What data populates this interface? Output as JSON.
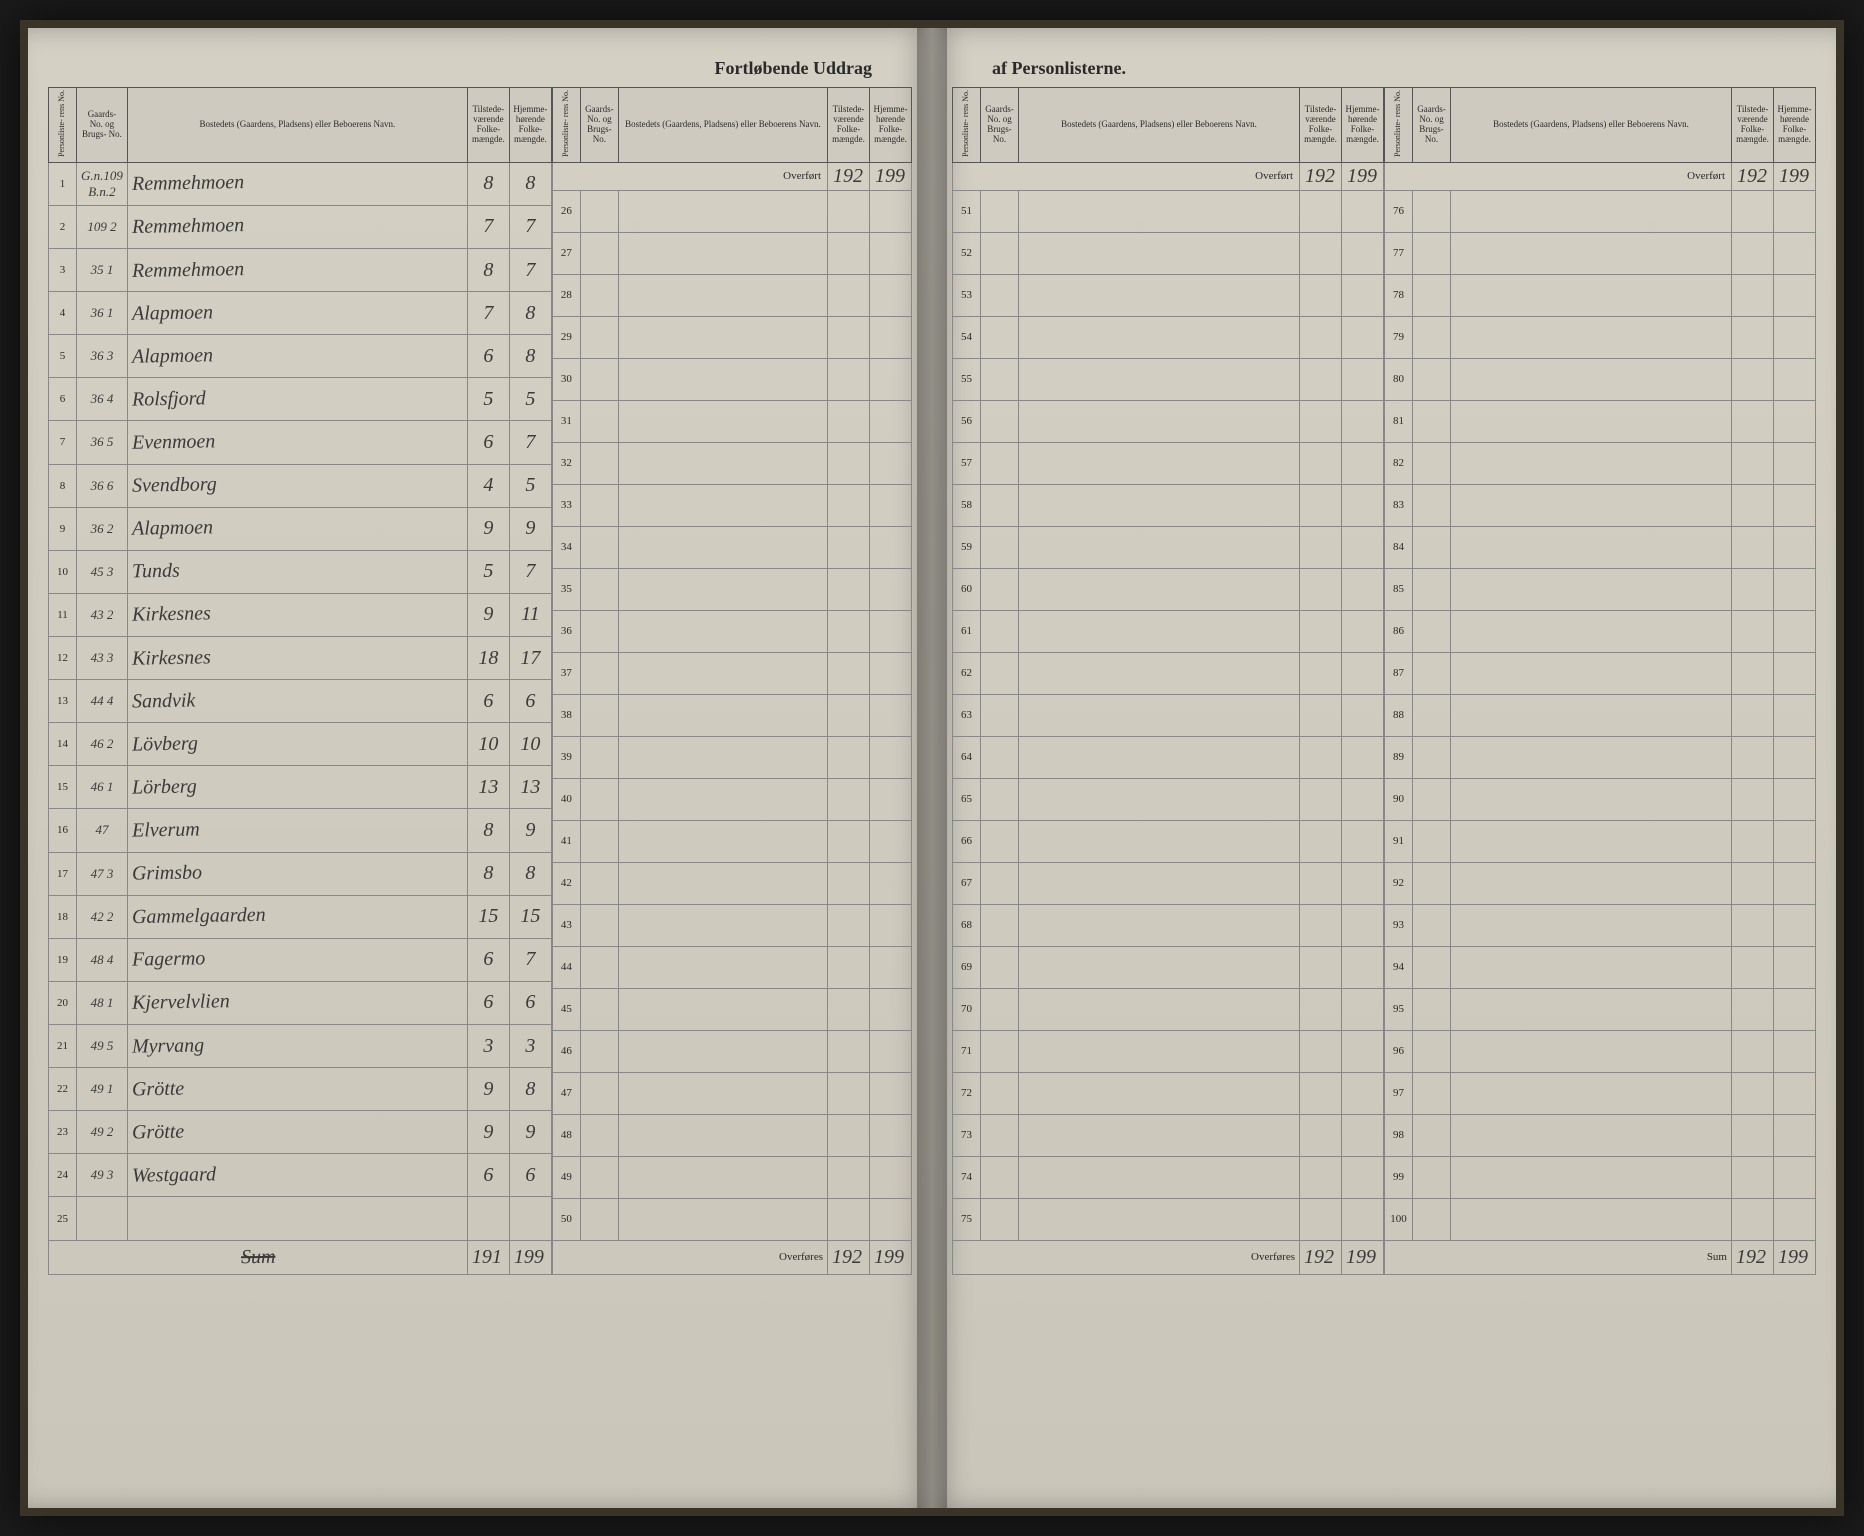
{
  "title_left": "Fortløbende Uddrag",
  "title_right": "af Personlisterne.",
  "headers": {
    "personliste": "Personliste-\nrens No.",
    "gaards": "Gaards-\nNo.\nog\nBrugs-\nNo.",
    "bosted": "Bostedets (Gaardens, Pladsens) eller\nBeboerens Navn.",
    "tilstede": "Tilstede-\nværende\nFolke-\nmængde.",
    "hjemme": "Hjemme-\nhørende\nFolke-\nmængde."
  },
  "overfort_label": "Overført",
  "overfores_label": "Overføres",
  "sum_label": "Sum",
  "overfort_values": [
    "192",
    "199"
  ],
  "entries": [
    {
      "n": "1",
      "g": "G.n.109\nB.n.2",
      "name": "Remmehmoen",
      "t": "8",
      "h": "8"
    },
    {
      "n": "2",
      "g": "109\n2",
      "name": "Remmehmoen",
      "t": "7",
      "h": "7"
    },
    {
      "n": "3",
      "g": "35\n1",
      "name": "Remmehmoen",
      "t": "8",
      "h": "7"
    },
    {
      "n": "4",
      "g": "36\n1",
      "name": "Alapmoen",
      "t": "7",
      "h": "8"
    },
    {
      "n": "5",
      "g": "36\n3",
      "name": "Alapmoen",
      "t": "6",
      "h": "8"
    },
    {
      "n": "6",
      "g": "36\n4",
      "name": "Rolsfjord",
      "t": "5",
      "h": "5"
    },
    {
      "n": "7",
      "g": "36\n5",
      "name": "Evenmoen",
      "t": "6",
      "h": "7"
    },
    {
      "n": "8",
      "g": "36\n6",
      "name": "Svendborg",
      "t": "4",
      "h": "5"
    },
    {
      "n": "9",
      "g": "36\n2",
      "name": "Alapmoen",
      "t": "9",
      "h": "9"
    },
    {
      "n": "10",
      "g": "45\n3",
      "name": "Tunds",
      "t": "5",
      "h": "7"
    },
    {
      "n": "11",
      "g": "43\n2",
      "name": "Kirkesnes",
      "t": "9",
      "h": "11"
    },
    {
      "n": "12",
      "g": "43\n3",
      "name": "Kirkesnes",
      "t": "18",
      "h": "17"
    },
    {
      "n": "13",
      "g": "44\n4",
      "name": "Sandvik",
      "t": "6",
      "h": "6"
    },
    {
      "n": "14",
      "g": "46\n2",
      "name": "Lövberg",
      "t": "10",
      "h": "10"
    },
    {
      "n": "15",
      "g": "46\n1",
      "name": "Lörberg",
      "t": "13",
      "h": "13"
    },
    {
      "n": "16",
      "g": "47\n",
      "name": "Elverum",
      "t": "8",
      "h": "9"
    },
    {
      "n": "17",
      "g": "47\n3",
      "name": "Grimsbo",
      "t": "8",
      "h": "8"
    },
    {
      "n": "18",
      "g": "42\n2",
      "name": "Gammelgaarden",
      "t": "15",
      "h": "15"
    },
    {
      "n": "19",
      "g": "48\n4",
      "name": "Fagermo",
      "t": "6",
      "h": "7"
    },
    {
      "n": "20",
      "g": "48\n1",
      "name": "Kjervelvlien",
      "t": "6",
      "h": "6"
    },
    {
      "n": "21",
      "g": "49\n5",
      "name": "Myrvang",
      "t": "3",
      "h": "3"
    },
    {
      "n": "22",
      "g": "49\n1",
      "name": "Grötte",
      "t": "9",
      "h": "8"
    },
    {
      "n": "23",
      "g": "49\n2",
      "name": "Grötte",
      "t": "9",
      "h": "9"
    },
    {
      "n": "24",
      "g": "49\n3",
      "name": "Westgaard",
      "t": "6",
      "h": "6"
    },
    {
      "n": "25",
      "g": "",
      "name": "",
      "t": "",
      "h": ""
    }
  ],
  "sum_values": [
    "191",
    "199"
  ],
  "block2_nums": [
    "26",
    "27",
    "28",
    "29",
    "30",
    "31",
    "32",
    "33",
    "34",
    "35",
    "36",
    "37",
    "38",
    "39",
    "40",
    "41",
    "42",
    "43",
    "44",
    "45",
    "46",
    "47",
    "48",
    "49",
    "50"
  ],
  "block3_nums": [
    "51",
    "52",
    "53",
    "54",
    "55",
    "56",
    "57",
    "58",
    "59",
    "60",
    "61",
    "62",
    "63",
    "64",
    "65",
    "66",
    "67",
    "68",
    "69",
    "70",
    "71",
    "72",
    "73",
    "74",
    "75"
  ],
  "block4_nums": [
    "76",
    "77",
    "78",
    "79",
    "80",
    "81",
    "82",
    "83",
    "84",
    "85",
    "86",
    "87",
    "88",
    "89",
    "90",
    "91",
    "92",
    "93",
    "94",
    "95",
    "96",
    "97",
    "98",
    "99",
    "100"
  ],
  "colors": {
    "paper": "#cac6ba",
    "ink": "#3a3a3a",
    "rule": "#888888",
    "header_rule": "#555555"
  }
}
